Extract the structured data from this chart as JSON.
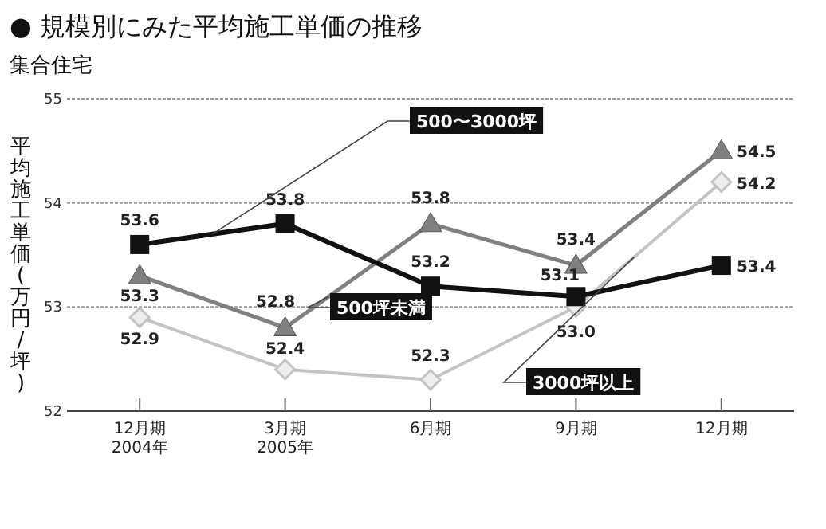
{
  "chart_data": {
    "type": "line",
    "title": "● 規模別にみた平均施工単価の推移",
    "subtitle": "集合住宅",
    "ylabel": "平均施工単価(万円/坪)",
    "categories": [
      "12月期\n2004年",
      "3月期\n2005年",
      "6月期",
      "9月期",
      "12月期"
    ],
    "ylim": [
      52,
      55
    ],
    "yticks": [
      52,
      53,
      54,
      55
    ],
    "grid": "y",
    "legend": false,
    "line_style": "solid",
    "series": [
      {
        "name": "500〜3000坪",
        "color": "#111111",
        "marker": "square",
        "values": [
          53.6,
          53.8,
          53.2,
          53.1,
          53.4
        ],
        "value_labels": [
          "53.6",
          "53.8",
          "53.2",
          "53.1",
          "53.4"
        ]
      },
      {
        "name": "500坪未満",
        "color": "#808080",
        "marker": "triangle",
        "values": [
          53.3,
          52.8,
          53.8,
          53.4,
          54.5
        ],
        "value_labels": [
          "53.3",
          "52.8",
          "53.8",
          "53.4",
          "54.5"
        ]
      },
      {
        "name": "3000坪以上",
        "color": "#c4c4c4",
        "marker": "diamond",
        "values": [
          52.9,
          52.4,
          52.3,
          53.0,
          54.2
        ],
        "value_labels": [
          "52.9",
          "52.4",
          "52.3",
          "53.0",
          "54.2"
        ]
      }
    ]
  }
}
